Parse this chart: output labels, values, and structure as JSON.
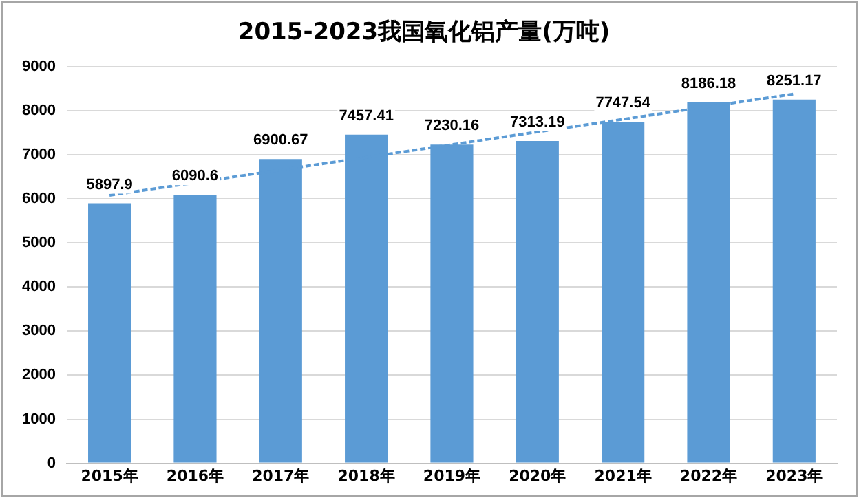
{
  "chart_data": {
    "type": "bar",
    "title": "2015-2023我国氧化铝产量(万吨)",
    "categories": [
      "2015年",
      "2016年",
      "2017年",
      "2018年",
      "2019年",
      "2020年",
      "2021年",
      "2022年",
      "2023年"
    ],
    "series": [
      {
        "color": "#5b9bd5",
        "values": [
          5897.9,
          6090.6,
          6900.67,
          7457.41,
          7230.16,
          7313.19,
          7747.54,
          8186.18,
          8251.17
        ],
        "value_labels": [
          "5897.9",
          "6090.6",
          "6900.67",
          "7457.41",
          "7230.16",
          "7313.19",
          "7747.54",
          "8186.18",
          "8251.17"
        ]
      },
      {
        "type": "line",
        "color": "#5b9bd5",
        "x": [
          "2015年",
          "2023年"
        ],
        "values": [
          6080,
          8380
        ],
        "line_style": "dashed",
        "marker": "none"
      }
    ],
    "ylim": [
      0,
      9000
    ],
    "yticks": [
      0,
      1000,
      2000,
      3000,
      4000,
      5000,
      6000,
      7000,
      8000,
      9000
    ],
    "grid": "y",
    "legend": false
  }
}
